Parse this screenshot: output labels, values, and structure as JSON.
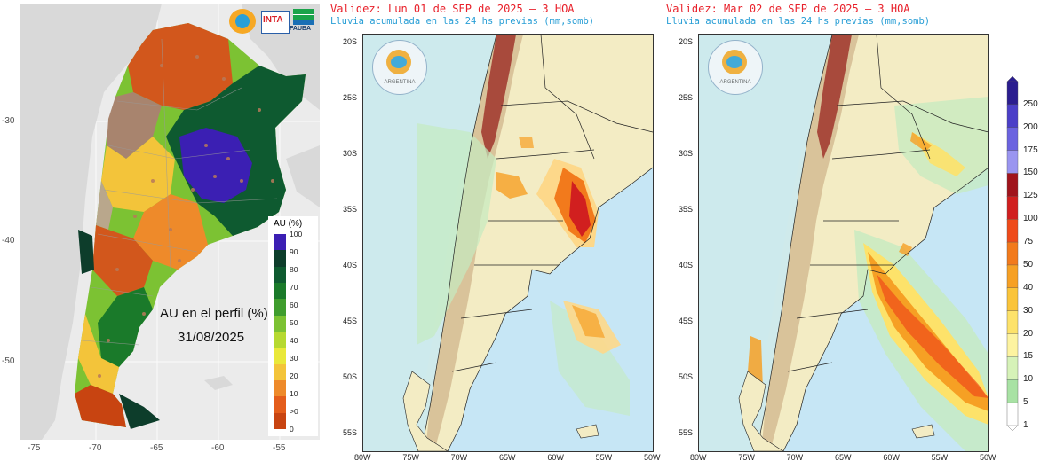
{
  "au_panel": {
    "label": "AU en el perfil (%)",
    "date": "31/08/2025",
    "lat_ticks": [
      "-30",
      "-40",
      "-50"
    ],
    "lon_ticks": [
      "-75",
      "-70",
      "-65",
      "-60",
      "-55"
    ],
    "legend": {
      "title": "AU (%)",
      "labels": [
        "100",
        "90",
        "80",
        "70",
        "60",
        "50",
        "40",
        "30",
        "20",
        "10",
        ">0",
        "0"
      ],
      "colors": [
        "#3b1fb3",
        "#0d3d2b",
        "#0e5a30",
        "#1a7a2a",
        "#3f9d2e",
        "#7cc233",
        "#b6d930",
        "#e9e83a",
        "#f3c43a",
        "#ee8a2a",
        "#e45d1b",
        "#c84411"
      ]
    },
    "logos": [
      {
        "name": "smn-logo",
        "text": ""
      },
      {
        "name": "inta-logo",
        "text": "INTA"
      },
      {
        "name": "fauba-logo",
        "text": "FAUBA"
      }
    ]
  },
  "forecast_panels": [
    {
      "validity": "Validez: Lun 01 de SEP de 2025 — 3 HOA",
      "subtitle": "Lluvia acumulada en las 24 hs previas (mm,somb)",
      "lat_ticks": [
        "20S",
        "25S",
        "30S",
        "35S",
        "40S",
        "45S",
        "50S",
        "55S"
      ],
      "lon_ticks": [
        "80W",
        "75W",
        "70W",
        "65W",
        "60W",
        "55W",
        "50W"
      ],
      "seal_text": "ARGENTINA"
    },
    {
      "validity": "Validez: Mar 02 de SEP de 2025 — 3 HOA",
      "subtitle": "Lluvia acumulada en las 24 hs previas (mm,somb)",
      "lat_ticks": [
        "20S",
        "25S",
        "30S",
        "35S",
        "40S",
        "45S",
        "50S",
        "55S"
      ],
      "lon_ticks": [
        "80W",
        "75W",
        "70W",
        "65W",
        "60W",
        "55W",
        "50W"
      ],
      "seal_text": "ARGENTINA"
    }
  ],
  "precip_colorbar": {
    "labels": [
      "250",
      "200",
      "175",
      "150",
      "125",
      "100",
      "75",
      "50",
      "40",
      "30",
      "20",
      "15",
      "10",
      "5",
      "1"
    ],
    "colors": [
      "#2b1d8f",
      "#4b3fc8",
      "#6b63e0",
      "#9a95f0",
      "#a0141c",
      "#d11f1f",
      "#ef4a1a",
      "#f27a1c",
      "#f6a024",
      "#fac43a",
      "#fde26a",
      "#fdf3a0",
      "#d6f2b8",
      "#a8e2a4",
      "#ffffff"
    ]
  },
  "colors": {
    "ocean": "#c6e6f5",
    "land": "#f3ecc4",
    "andes": "#a84a3c",
    "title_red": "#e8202a",
    "title_blue": "#2a9fd6"
  }
}
